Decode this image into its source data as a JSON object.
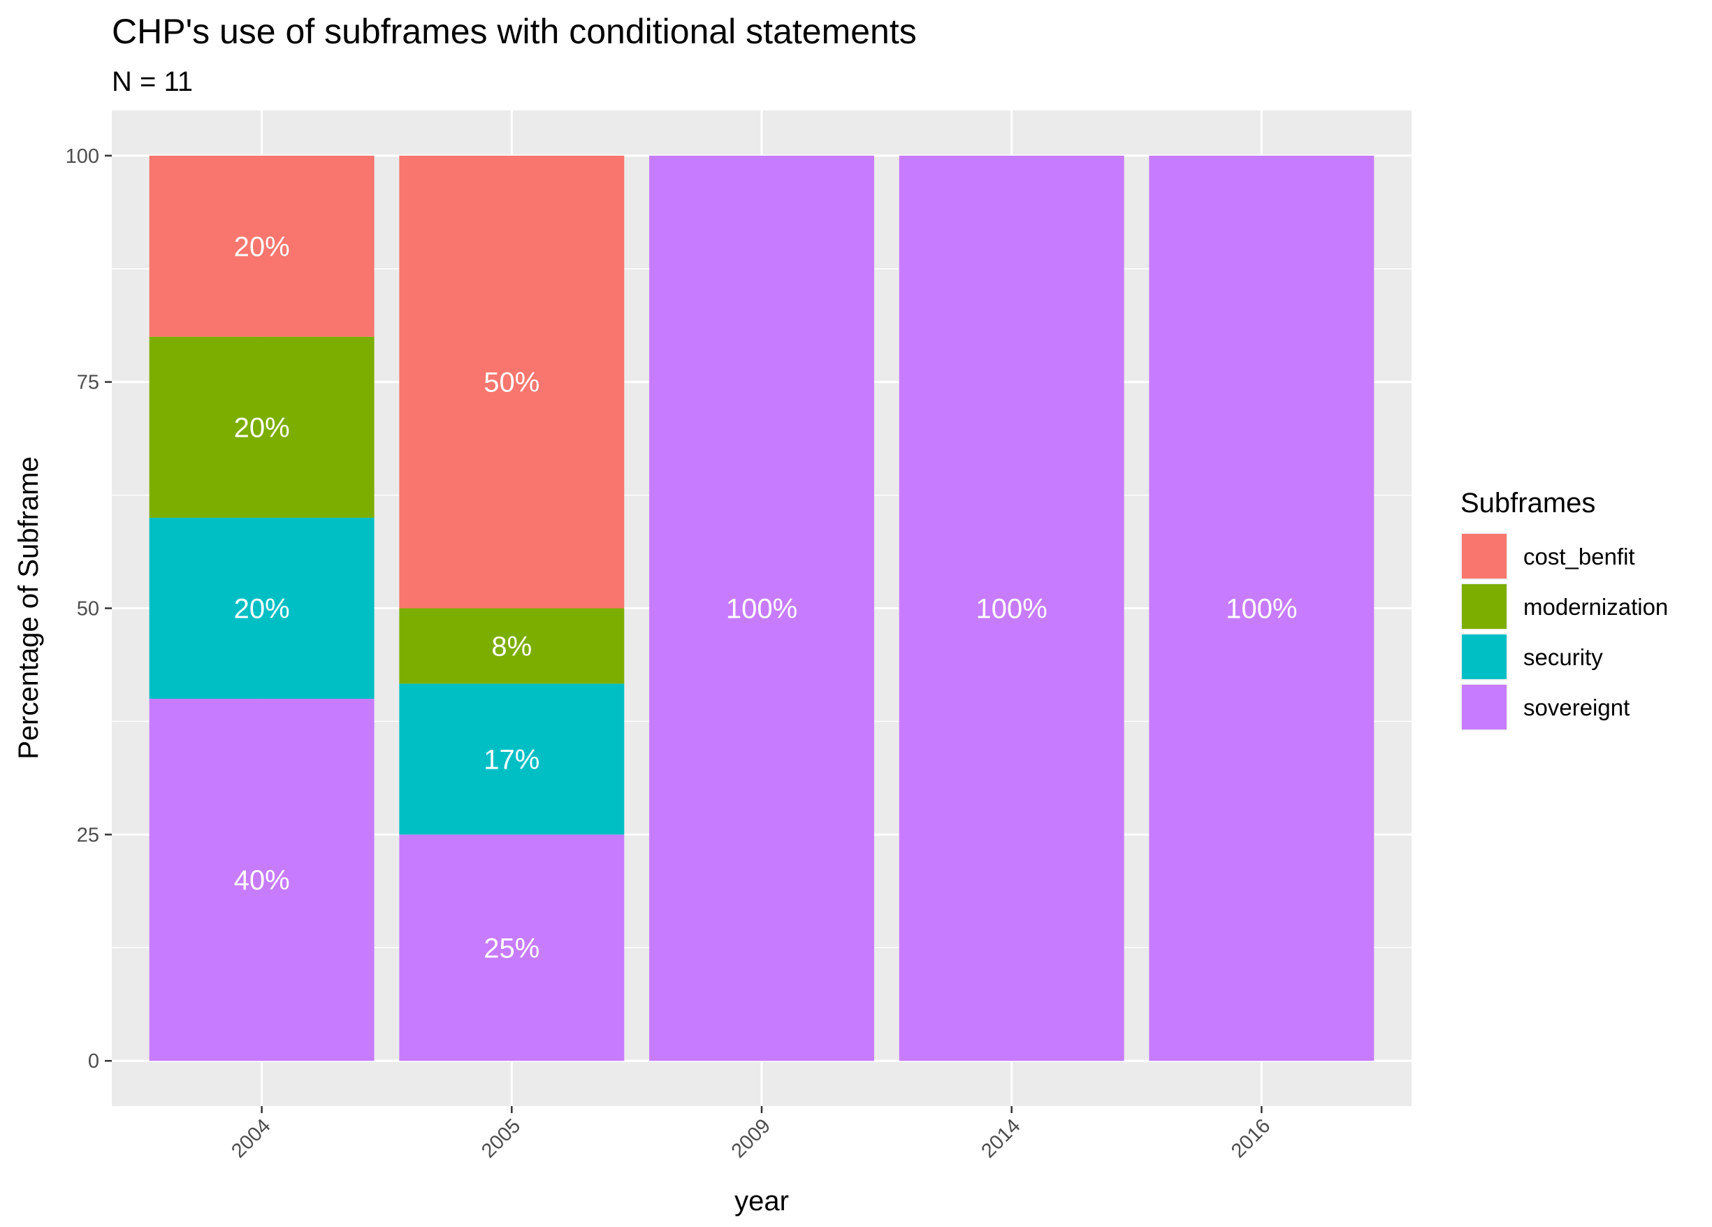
{
  "chart_data": {
    "type": "bar",
    "stacked": true,
    "title": "CHP's use of subframes with conditional statements",
    "subtitle": "N = 11",
    "xlabel": "year",
    "ylabel": "Percentage of Subframe",
    "ylim": [
      -5,
      105
    ],
    "yticks": [
      0,
      25,
      50,
      75,
      100
    ],
    "grid": true,
    "categories": [
      "2004",
      "2005",
      "2009",
      "2014",
      "2016"
    ],
    "stack_order": [
      "cost_benfit",
      "modernization",
      "security",
      "sovereignt"
    ],
    "series": [
      {
        "name": "cost_benfit",
        "color": "#F8766D",
        "values": [
          20,
          50,
          0,
          0,
          0
        ],
        "labels": [
          "20%",
          "50%",
          "",
          "",
          ""
        ]
      },
      {
        "name": "modernization",
        "color": "#7CAE00",
        "values": [
          20,
          8.33,
          0,
          0,
          0
        ],
        "labels": [
          "20%",
          "8%",
          "",
          "",
          ""
        ]
      },
      {
        "name": "security",
        "color": "#00BFC4",
        "values": [
          20,
          16.67,
          0,
          0,
          0
        ],
        "labels": [
          "20%",
          "17%",
          "",
          "",
          ""
        ]
      },
      {
        "name": "sovereignt",
        "color": "#C77CFF",
        "values": [
          40,
          25,
          100,
          100,
          100
        ],
        "labels": [
          "40%",
          "25%",
          "100%",
          "100%",
          "100%"
        ]
      }
    ],
    "legend": {
      "title": "Subframes",
      "position": "right"
    }
  }
}
